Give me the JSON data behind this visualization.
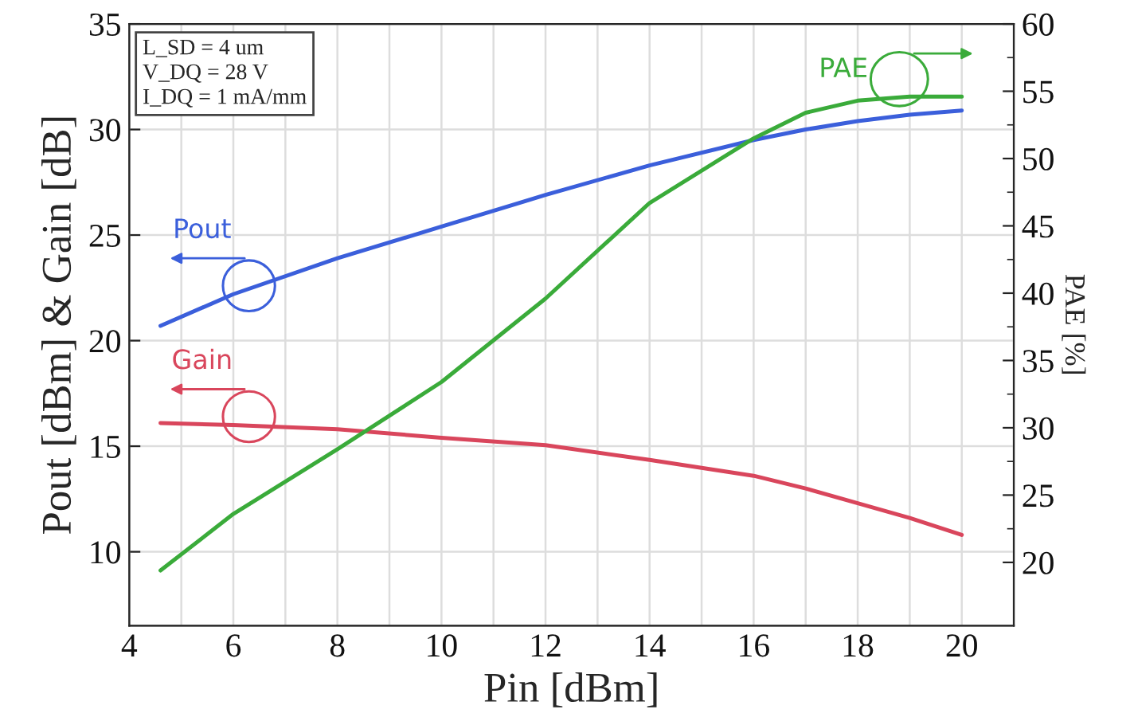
{
  "chart_data": {
    "type": "line",
    "xlabel": "Pin [dBm]",
    "ylabel": "Pout [dBm] & Gain [dB]",
    "y2label": "PAE [%]",
    "x": [
      4.6,
      6,
      8,
      10,
      12,
      14,
      16,
      17,
      18,
      19,
      20
    ],
    "series": [
      {
        "name": "Pout",
        "color": "#3b5fdb",
        "values": [
          20.7,
          22.2,
          23.9,
          25.4,
          26.9,
          28.3,
          29.5,
          30.0,
          30.4,
          30.7,
          30.9
        ]
      },
      {
        "name": "Gain",
        "color": "#d9465c",
        "values": [
          16.1,
          16.0,
          15.8,
          15.4,
          15.05,
          14.35,
          13.6,
          13.0,
          12.3,
          11.6,
          10.8
        ]
      },
      {
        "name": "PAE",
        "color": "#3aab3a",
        "axis": "y2",
        "values": [
          19.4,
          23.6,
          28.4,
          33.4,
          39.6,
          46.7,
          51.5,
          53.4,
          54.3,
          54.6,
          54.6
        ]
      }
    ],
    "xlim": [
      4,
      21
    ],
    "xticks": [
      4,
      6,
      8,
      10,
      12,
      14,
      16,
      18,
      20
    ],
    "ylim": [
      6.5,
      35
    ],
    "yticks": [
      10,
      15,
      20,
      25,
      30,
      35
    ],
    "y2lim": [
      15.3,
      60
    ],
    "y2ticks": [
      20,
      25,
      30,
      35,
      40,
      45,
      50,
      55,
      60
    ],
    "grid": true,
    "legend": "top right",
    "annotations": [
      "L_SD = 4 um\nV_DQ = 28 V\nI_DQ = 1 mA/mm"
    ]
  }
}
